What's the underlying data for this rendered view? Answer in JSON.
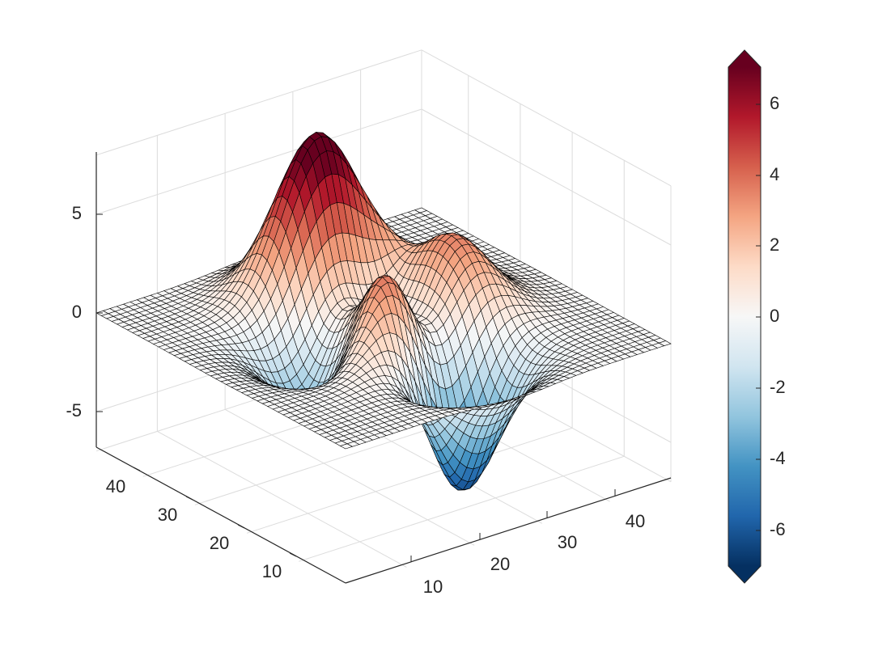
{
  "chart_data": {
    "type": "surface",
    "function": "peaks",
    "grid_size": [
      49,
      49
    ],
    "x_ticks": [
      "10",
      "20",
      "30",
      "40"
    ],
    "y_ticks": [
      "10",
      "20",
      "30",
      "40"
    ],
    "z_ticks": [
      "-5",
      "0",
      "5"
    ],
    "xlim": [
      1,
      49
    ],
    "ylim": [
      1,
      49
    ],
    "zlim": [
      -7,
      8
    ],
    "z_range": [
      -6.55,
      8.08
    ],
    "grid": true,
    "colormap": "red-blue diverging",
    "colormap_stops": [
      "#053061",
      "#2166ac",
      "#4393c3",
      "#92c5de",
      "#d1e5f0",
      "#f7f7f7",
      "#fddbc7",
      "#f4a582",
      "#d6604d",
      "#b2182b",
      "#67001f"
    ],
    "edge_color": "#000000",
    "colorbar": {
      "position": "right",
      "range": [
        -7,
        7
      ],
      "ticks": [
        "-6",
        "-4",
        "-2",
        "0",
        "2",
        "4",
        "6"
      ],
      "extend": "both"
    }
  }
}
